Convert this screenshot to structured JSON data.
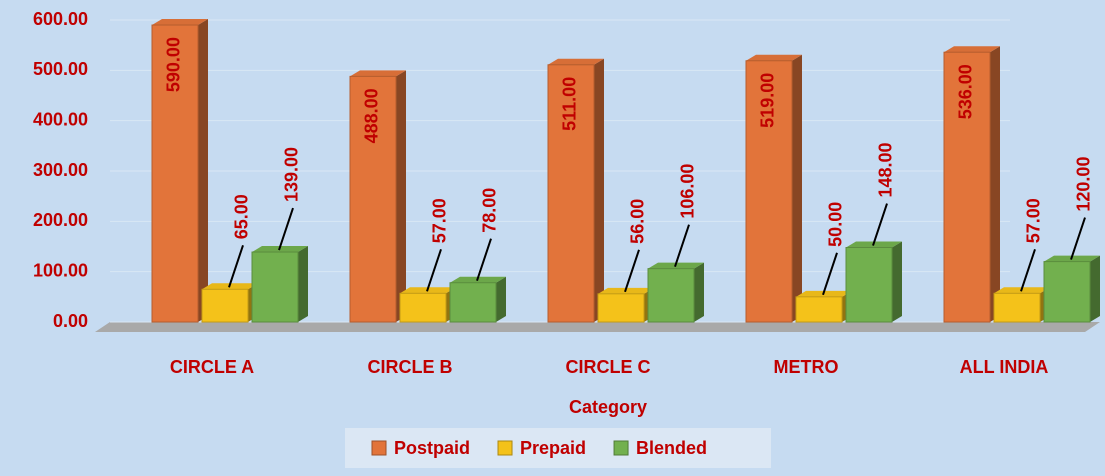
{
  "chart_data": {
    "type": "bar",
    "x_label": "Category",
    "categories": [
      "CIRCLE A",
      "CIRCLE B",
      "CIRCLE C",
      "METRO",
      "ALL INDIA"
    ],
    "series": [
      {
        "name": "Postpaid",
        "color": "#e2743a",
        "values": [
          590,
          488,
          511,
          519,
          536
        ],
        "value_labels": [
          "590.00",
          "488.00",
          "511.00",
          "519.00",
          "536.00"
        ]
      },
      {
        "name": "Prepaid",
        "color": "#f4c21a",
        "values": [
          65,
          57,
          56,
          50,
          57
        ],
        "value_labels": [
          "65.00",
          "57.00",
          "56.00",
          "50.00",
          "57.00"
        ]
      },
      {
        "name": "Blended",
        "color": "#72b04e",
        "values": [
          139,
          78,
          106,
          148,
          120
        ],
        "value_labels": [
          "139.00",
          "78.00",
          "106.00",
          "148.00",
          "120.00"
        ]
      }
    ],
    "ylim": [
      0,
      600
    ],
    "yticks": [
      {
        "value": 0,
        "label": "0.00"
      },
      {
        "value": 100,
        "label": "100.00"
      },
      {
        "value": 200,
        "label": "200.00"
      },
      {
        "value": 300,
        "label": "300.00"
      },
      {
        "value": 400,
        "label": "400.00"
      },
      {
        "value": 500,
        "label": "500.00"
      },
      {
        "value": 600,
        "label": "600.00"
      }
    ],
    "grid": true,
    "legend": "bottom"
  }
}
